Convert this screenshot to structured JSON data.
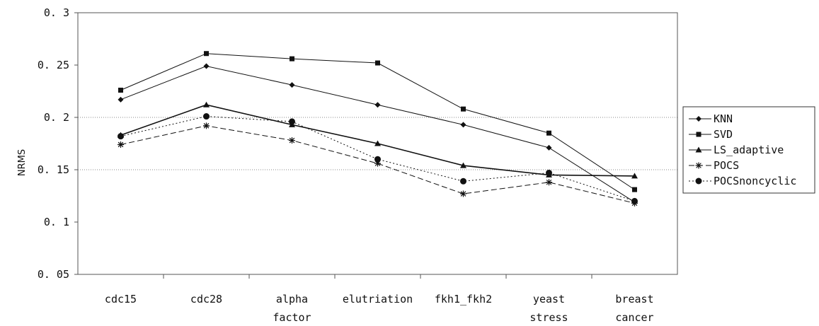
{
  "chart_data": {
    "type": "line",
    "title": "",
    "xlabel": "",
    "ylabel": "NRMS",
    "ylim": [
      0.05,
      0.3
    ],
    "yticks": [
      "0.05",
      "0.1",
      "0.15",
      "0.2",
      "0.25",
      "0.3"
    ],
    "grid": "horizontal dotted at 0.15 and 0.2",
    "legend": "right",
    "categories": [
      [
        "cdc15"
      ],
      [
        "cdc28"
      ],
      [
        "alpha",
        "factor"
      ],
      [
        "elutriation"
      ],
      [
        "fkh1_fkh2"
      ],
      [
        "yeast",
        "stress"
      ],
      [
        "breast",
        "cancer"
      ]
    ],
    "series": [
      {
        "name": "KNN",
        "marker": "diamond",
        "dash": "solid",
        "values": [
          0.217,
          0.249,
          0.231,
          0.212,
          0.193,
          0.171,
          0.119
        ]
      },
      {
        "name": "SVD",
        "marker": "square",
        "dash": "solid",
        "values": [
          0.226,
          0.261,
          0.256,
          0.252,
          0.208,
          0.185,
          0.131
        ]
      },
      {
        "name": "LS_adaptive",
        "marker": "triangle",
        "dash": "solid",
        "values": [
          0.183,
          0.212,
          0.193,
          0.175,
          0.154,
          0.145,
          0.144
        ]
      },
      {
        "name": "POCS",
        "marker": "star",
        "dash": "dashed",
        "values": [
          0.174,
          0.192,
          0.178,
          0.156,
          0.127,
          0.138,
          0.118
        ]
      },
      {
        "name": "POCSnoncyclic",
        "marker": "circle",
        "dash": "dotted",
        "values": [
          0.182,
          0.201,
          0.196,
          0.16,
          0.139,
          0.147,
          0.12
        ]
      }
    ]
  }
}
